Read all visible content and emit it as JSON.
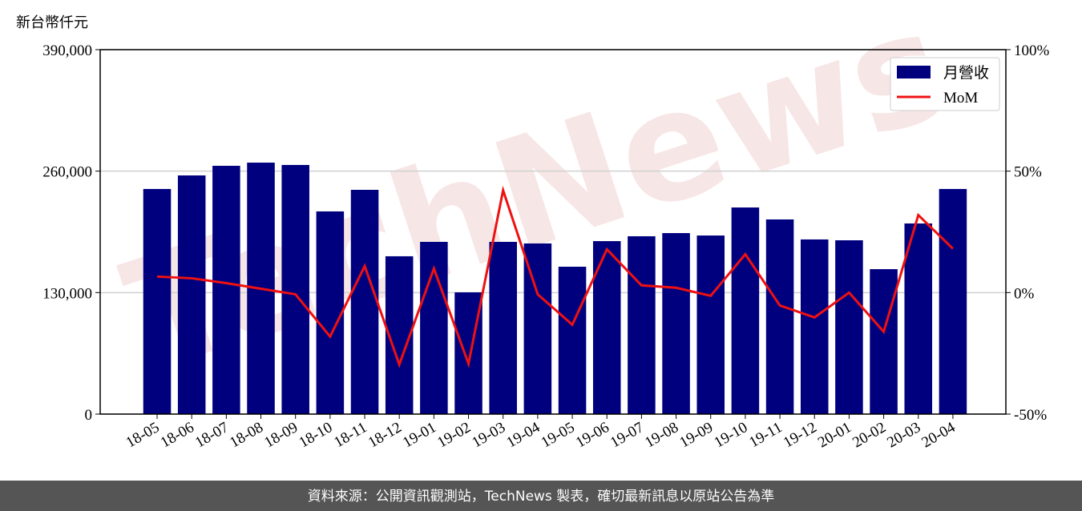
{
  "chart_data": {
    "type": "bar-line",
    "y_label": "新台幣仟元",
    "watermark": "TechNews",
    "source": "資料來源：公開資訊觀測站，TechNews 製表，確切最新訊息以原站公告為準",
    "categories": [
      "18-05",
      "18-06",
      "18-07",
      "18-08",
      "18-09",
      "18-10",
      "18-11",
      "18-12",
      "19-01",
      "19-02",
      "19-03",
      "19-04",
      "19-05",
      "19-06",
      "19-07",
      "19-08",
      "19-09",
      "19-10",
      "19-11",
      "19-12",
      "20-01",
      "20-02",
      "20-03",
      "20-04"
    ],
    "series": [
      {
        "name": "月營收",
        "type": "bar",
        "color": "#00007f",
        "values": [
          240900,
          255400,
          265700,
          269100,
          266600,
          216900,
          240000,
          168900,
          184300,
          130300,
          184300,
          182600,
          157700,
          185100,
          190300,
          193700,
          191100,
          221100,
          208300,
          186900,
          186000,
          155100,
          204000,
          240900
        ]
      },
      {
        "name": "MoM",
        "type": "line",
        "axis": "y2",
        "color": "#ee1111",
        "values": [
          6.6,
          5.9,
          3.9,
          1.6,
          -0.7,
          -18.1,
          10.9,
          -29.6,
          9.9,
          -29.3,
          42.1,
          -0.7,
          -13.2,
          17.8,
          3.0,
          2.0,
          -1.3,
          15.8,
          -5.3,
          -10.2,
          0,
          -16.1,
          31.9,
          18.1
        ]
      }
    ],
    "ylim": [
      0,
      390000
    ],
    "yticks": [
      0,
      {
        "value": 130000,
        "label": "130,000"
      },
      {
        "value": 260000,
        "label": "260,000"
      },
      {
        "value": 390000,
        "label": "390,000"
      }
    ],
    "y2lim": [
      -50,
      100
    ],
    "y2ticks": [
      {
        "value": -50,
        "label": "-50%"
      },
      {
        "value": 0,
        "label": "0%"
      },
      {
        "value": 50,
        "label": "50%"
      },
      {
        "value": 100,
        "label": "100%"
      }
    ],
    "grid": true,
    "legend": "upper right"
  }
}
